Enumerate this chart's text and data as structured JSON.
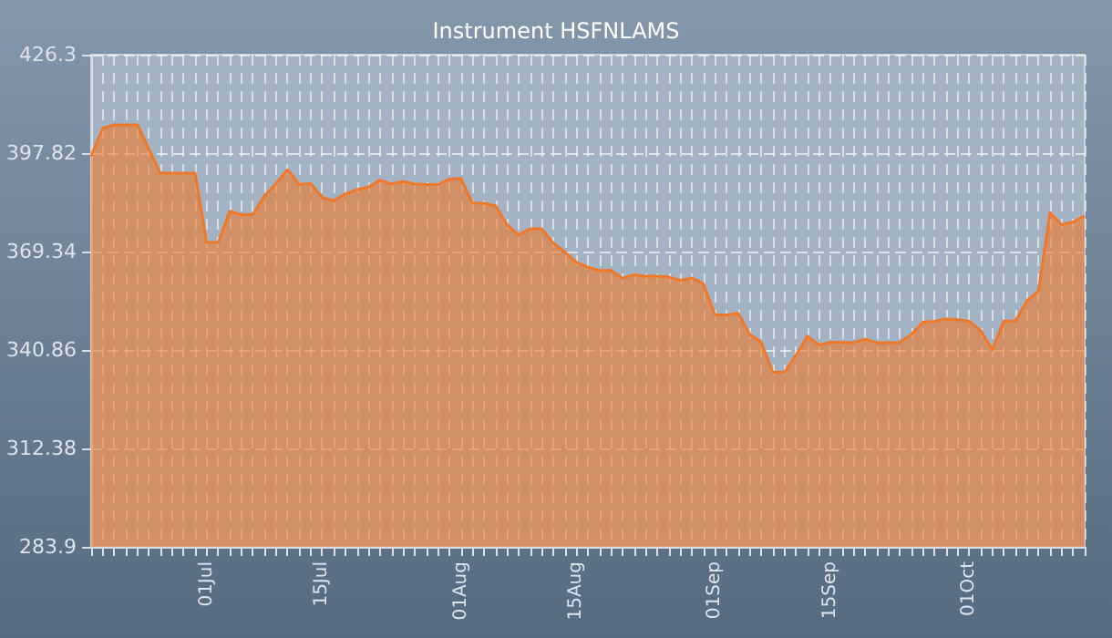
{
  "chart_data": {
    "type": "area",
    "title": "Instrument HSFNLAMS",
    "categories": [
      null,
      null,
      null,
      null,
      null,
      null,
      null,
      null,
      null,
      null,
      "01Jul",
      null,
      null,
      null,
      null,
      null,
      null,
      null,
      null,
      null,
      "15Jul",
      null,
      null,
      null,
      null,
      null,
      null,
      null,
      null,
      null,
      null,
      null,
      "01Aug",
      null,
      null,
      null,
      null,
      null,
      null,
      null,
      null,
      null,
      "15Aug",
      null,
      null,
      null,
      null,
      null,
      null,
      null,
      null,
      null,
      null,
      null,
      "01Sep",
      null,
      null,
      null,
      null,
      null,
      null,
      null,
      null,
      null,
      "15Sep",
      null,
      null,
      null,
      null,
      null,
      null,
      null,
      null,
      null,
      null,
      null,
      "01Oct",
      null,
      null,
      null,
      null,
      null,
      null,
      null,
      null,
      null,
      null
    ],
    "values": [
      397,
      405,
      406,
      406,
      406,
      399,
      392,
      392,
      392,
      392,
      372,
      372,
      381,
      380,
      380,
      385.5,
      389,
      393,
      388.8,
      389,
      385,
      384,
      386,
      387.3,
      388,
      390,
      388.9,
      389.6,
      388.9,
      388.7,
      388.7,
      390.3,
      390.5,
      383.4,
      383.3,
      382.6,
      377.1,
      374.2,
      375.9,
      375.9,
      371.8,
      369.2,
      366.2,
      364.8,
      363.9,
      363.9,
      361.6,
      362.6,
      362.2,
      362.2,
      362,
      361,
      361.7,
      360,
      351,
      351,
      351.5,
      345.4,
      343.1,
      334.4,
      334.4,
      339.3,
      344.9,
      342.3,
      343.1,
      343.1,
      343,
      344,
      343,
      343,
      343,
      345.4,
      348.9,
      349.2,
      349.8,
      349.6,
      349.2,
      346.5,
      340.9,
      349.2,
      349.2,
      355.1,
      357.9,
      380.6,
      377.1,
      377.9,
      379.7
    ],
    "color": "#f07828",
    "ylim": [
      283.9,
      426.3
    ],
    "yticks": [
      283.9,
      312.38,
      340.86,
      369.34,
      397.82,
      426.3
    ],
    "grid": true
  }
}
